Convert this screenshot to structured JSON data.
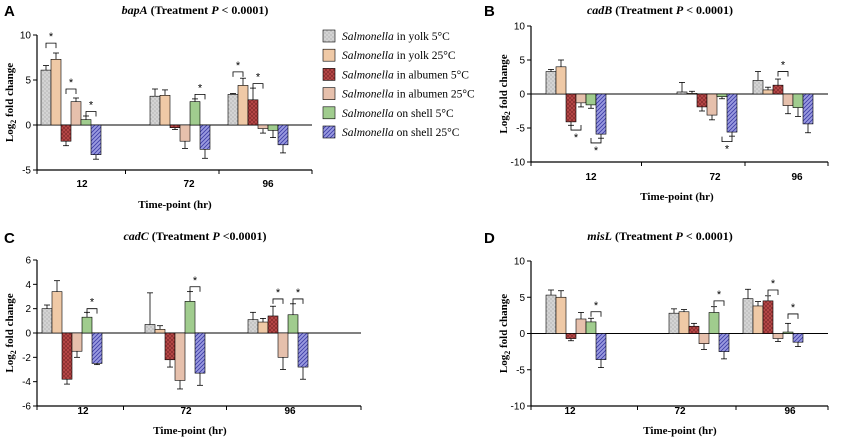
{
  "legend": [
    {
      "italic": "Salmonella",
      "rest": " in yolk 5°C"
    },
    {
      "italic": "Salmonella",
      "rest": " in yolk 25°C"
    },
    {
      "italic": "Salmonella",
      "rest": " in albumen 5°C"
    },
    {
      "italic": "Salmonella",
      "rest": " in albumen 25°C"
    },
    {
      "italic": "Salmonella",
      "rest": " on shell 5°C"
    },
    {
      "italic": "Salmonella",
      "rest": " on shell 25°C"
    }
  ],
  "series_styles": [
    {
      "fill": "#d4d4d4",
      "pattern": "dots",
      "pattern_color": "#8a8a8a"
    },
    {
      "fill": "#efc9a6",
      "pattern": "none",
      "pattern_color": "#c79a72"
    },
    {
      "fill": "#b84848",
      "pattern": "crosshatch",
      "pattern_color": "#7a2626"
    },
    {
      "fill": "#f3d6c6",
      "pattern": "hlines",
      "pattern_color": "#c07d5f"
    },
    {
      "fill": "#b7dfa7",
      "pattern": "vlines",
      "pattern_color": "#6aa056"
    },
    {
      "fill": "#9a9ae0",
      "pattern": "diagonal",
      "pattern_color": "#3f3fa8"
    }
  ],
  "chart_data": [
    {
      "letter": "A",
      "title_gene": "bapA",
      "title_rest": " (Treatment ",
      "title_p": "P",
      "title_tail": " < 0.0001)",
      "type": "bar",
      "xlabel": "Time-point (hr)",
      "ylabel_main": "Log",
      "ylabel_sub": "2",
      "ylabel_rest": " fold change",
      "categories": [
        "12",
        "72",
        "96"
      ],
      "ylim": [
        -5,
        10
      ],
      "yticks": [
        -5,
        0,
        5,
        10
      ],
      "values": [
        [
          6.1,
          7.3,
          -1.8,
          2.6,
          0.6,
          -3.3
        ],
        [
          3.2,
          3.3,
          -0.3,
          -1.8,
          2.6,
          -2.7
        ],
        [
          3.4,
          4.4,
          2.8,
          -0.4,
          -0.6,
          -2.2
        ]
      ],
      "errors": [
        [
          0.5,
          0.7,
          0.5,
          0.4,
          0.4,
          0.5
        ],
        [
          0.8,
          0.6,
          0.2,
          0.8,
          0.3,
          1.0
        ],
        [
          0.1,
          0.8,
          1.3,
          0.5,
          0.8,
          0.9
        ]
      ],
      "significance": [
        {
          "cat": 0,
          "a": 0,
          "b": 1,
          "y": 9.1,
          "dir": "up",
          "label": "*"
        },
        {
          "cat": 0,
          "a": 2,
          "b": 3,
          "y": 4.0,
          "dir": "up",
          "label": "*"
        },
        {
          "cat": 0,
          "a": 4,
          "b": 5,
          "y": 1.5,
          "dir": "up",
          "label": "*"
        },
        {
          "cat": 1,
          "a": 4,
          "b": 5,
          "y": 3.4,
          "dir": "up",
          "label": "*"
        },
        {
          "cat": 2,
          "a": 0,
          "b": 1,
          "y": 5.9,
          "dir": "up",
          "label": "*"
        },
        {
          "cat": 2,
          "a": 2,
          "b": 3,
          "y": 4.6,
          "dir": "up",
          "label": "*"
        }
      ]
    },
    {
      "letter": "B",
      "title_gene": "cadB",
      "title_rest": " (Treatment ",
      "title_p": "P",
      "title_tail": " < 0.0001)",
      "type": "bar",
      "xlabel": "Time-point (hr)",
      "ylabel_main": "Log",
      "ylabel_sub": "2",
      "ylabel_rest": " fold change",
      "categories": [
        "12",
        "72",
        "96"
      ],
      "ylim": [
        -10,
        10
      ],
      "yticks": [
        -10,
        -5,
        0,
        5,
        10
      ],
      "values": [
        [
          3.3,
          4.0,
          -4.1,
          -1.3,
          -1.6,
          -5.9
        ],
        [
          0.3,
          0.1,
          -1.9,
          -3.1,
          -0.4,
          -5.6
        ],
        [
          2.0,
          0.6,
          1.3,
          -1.7,
          -2.0,
          -4.4
        ]
      ],
      "errors": [
        [
          0.3,
          1.0,
          0.5,
          0.6,
          0.5,
          0.6
        ],
        [
          1.4,
          0.3,
          0.6,
          0.7,
          0.3,
          0.6
        ],
        [
          1.3,
          0.4,
          0.9,
          1.2,
          1.3,
          1.3
        ]
      ],
      "significance": [
        {
          "cat": 0,
          "a": 2,
          "b": 3,
          "y": -5.3,
          "dir": "down",
          "label": "*"
        },
        {
          "cat": 0,
          "a": 4,
          "b": 5,
          "y": -7.2,
          "dir": "down",
          "label": "*"
        },
        {
          "cat": 1,
          "a": 4,
          "b": 5,
          "y": -7.0,
          "dir": "down",
          "label": "*"
        },
        {
          "cat": 2,
          "a": 2,
          "b": 3,
          "y": 3.3,
          "dir": "up",
          "label": "*"
        }
      ]
    },
    {
      "letter": "C",
      "title_gene": "cadC",
      "title_rest": " (Treatment ",
      "title_p": "P",
      "title_tail": " <0.0001)",
      "type": "bar",
      "xlabel": "Time-point (hr)",
      "ylabel_main": "Log",
      "ylabel_sub": "2",
      "ylabel_rest": " fold change",
      "categories": [
        "12",
        "72",
        "96"
      ],
      "ylim": [
        -6,
        6
      ],
      "yticks": [
        -6,
        -4,
        -2,
        0,
        2,
        4,
        6
      ],
      "values": [
        [
          2.0,
          3.4,
          -3.8,
          -1.5,
          1.3,
          -2.5
        ],
        [
          0.7,
          0.3,
          -2.2,
          -3.9,
          2.6,
          -3.3
        ],
        [
          1.1,
          0.9,
          1.4,
          -2.0,
          1.5,
          -2.8
        ]
      ],
      "errors": [
        [
          0.3,
          0.9,
          0.4,
          0.5,
          0.4,
          0.1
        ],
        [
          2.6,
          0.3,
          0.6,
          0.7,
          0.8,
          1.0
        ],
        [
          0.6,
          0.3,
          0.8,
          1.0,
          0.9,
          1.0
        ]
      ],
      "significance": [
        {
          "cat": 0,
          "a": 4,
          "b": 5,
          "y": 2.0,
          "dir": "up",
          "label": "*"
        },
        {
          "cat": 1,
          "a": 4,
          "b": 5,
          "y": 3.8,
          "dir": "up",
          "label": "*"
        },
        {
          "cat": 2,
          "a": 2,
          "b": 3,
          "y": 2.8,
          "dir": "up",
          "label": "*"
        },
        {
          "cat": 2,
          "a": 4,
          "b": 5,
          "y": 2.8,
          "dir": "up",
          "label": "*"
        }
      ]
    },
    {
      "letter": "D",
      "title_gene": "misL",
      "title_rest": " (Treatment ",
      "title_p": "P",
      "title_tail": " < 0.0001)",
      "type": "bar",
      "xlabel": "Time-point (hr)",
      "ylabel_main": "Log",
      "ylabel_sub": "2",
      "ylabel_rest": " fold change",
      "categories": [
        "12",
        "72",
        "96"
      ],
      "ylim": [
        -10,
        10
      ],
      "yticks": [
        -10,
        -5,
        0,
        5,
        10
      ],
      "values": [
        [
          5.3,
          5.0,
          -0.7,
          2.0,
          1.6,
          -3.6
        ],
        [
          2.8,
          3.0,
          1.0,
          -1.4,
          2.9,
          -2.5
        ],
        [
          4.8,
          3.8,
          4.5,
          -0.7,
          0.2,
          -1.2
        ]
      ],
      "errors": [
        [
          0.7,
          0.9,
          0.3,
          0.9,
          0.5,
          1.1
        ],
        [
          0.6,
          0.3,
          0.4,
          0.8,
          0.8,
          1.0
        ],
        [
          1.3,
          0.6,
          0.7,
          0.4,
          1.2,
          0.6
        ]
      ],
      "significance": [
        {
          "cat": 0,
          "a": 4,
          "b": 5,
          "y": 3.0,
          "dir": "up",
          "label": "*"
        },
        {
          "cat": 1,
          "a": 4,
          "b": 5,
          "y": 4.5,
          "dir": "up",
          "label": "*"
        },
        {
          "cat": 2,
          "a": 2,
          "b": 3,
          "y": 6.0,
          "dir": "up",
          "label": "*"
        },
        {
          "cat": 2,
          "a": 4,
          "b": 5,
          "y": 2.7,
          "dir": "up",
          "label": "*"
        }
      ]
    }
  ]
}
